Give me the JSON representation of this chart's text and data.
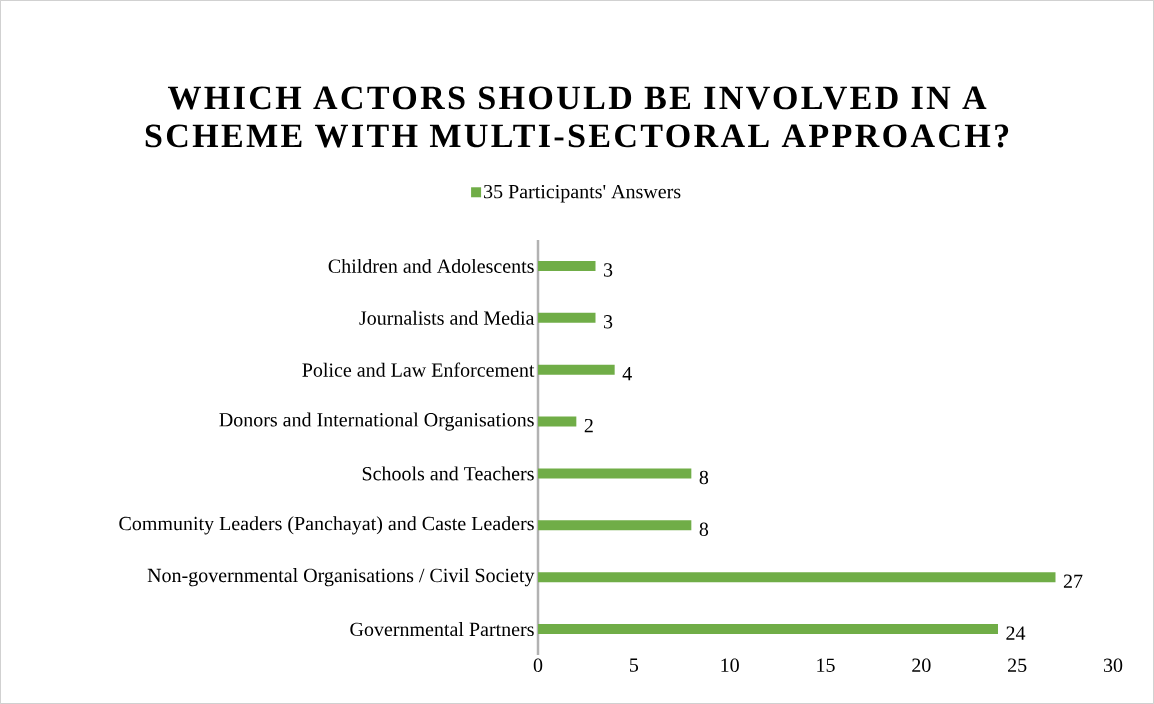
{
  "chart_data": {
    "type": "bar",
    "orientation": "horizontal",
    "title": "WHICH ACTORS SHOULD BE INVOLVED IN A SCHEME WITH MULTI-SECTORAL APPROACH?",
    "categories": [
      "Children and Adolescents",
      "Journalists and Media",
      "Police and Law Enforcement",
      "Donors and International Organisations",
      "Schools and Teachers",
      "Community Leaders (Panchayat) and Caste Leaders",
      "Non-governmental Organisations / Civil Society",
      "Governmental Partners"
    ],
    "series": [
      {
        "name": "35 Participants' Answers",
        "color": "#70ad47",
        "values": [
          3,
          3,
          4,
          2,
          8,
          8,
          27,
          24
        ]
      }
    ],
    "xlim": [
      0,
      30
    ],
    "xticks": [
      0,
      5,
      10,
      15,
      20,
      25,
      30
    ],
    "data_labels": true,
    "grid": false,
    "legend": "top"
  }
}
